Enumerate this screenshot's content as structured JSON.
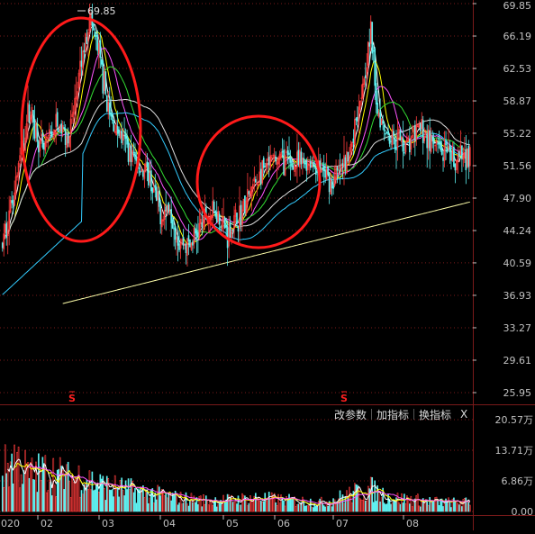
{
  "toolbar": {
    "modify_params": "改参数",
    "add_indicator": "加指标",
    "change_indicator": "换指标",
    "close": "X"
  },
  "chart_data": {
    "type": "candlestick",
    "price_axis": {
      "ticks": [
        "69.85",
        "66.19",
        "62.53",
        "58.87",
        "55.22",
        "51.56",
        "47.90",
        "44.24",
        "40.59",
        "36.93",
        "33.27",
        "29.61",
        "25.95"
      ],
      "ylim": [
        25.95,
        69.85
      ]
    },
    "high_label": "69.85",
    "volume_axis": {
      "ticks": [
        "20.57万",
        "13.71万",
        "6.86万",
        "0.00"
      ],
      "ylim": [
        0,
        20.57
      ],
      "unit": "万"
    },
    "x_ticks": [
      "2020",
      "02",
      "03",
      "04",
      "05",
      "06",
      "07",
      "08"
    ],
    "markers": [
      "S",
      "S"
    ],
    "price_keypoints": [
      {
        "t": 0,
        "p": 42.5
      },
      {
        "t": 10,
        "p": 50
      },
      {
        "t": 20,
        "p": 58
      },
      {
        "t": 30,
        "p": 53
      },
      {
        "t": 40,
        "p": 56
      },
      {
        "t": 50,
        "p": 55
      },
      {
        "t": 58,
        "p": 62
      },
      {
        "t": 65,
        "p": 68.5
      },
      {
        "t": 72,
        "p": 64
      },
      {
        "t": 80,
        "p": 57
      },
      {
        "t": 90,
        "p": 54.5
      },
      {
        "t": 100,
        "p": 52
      },
      {
        "t": 110,
        "p": 50
      },
      {
        "t": 118,
        "p": 46
      },
      {
        "t": 125,
        "p": 47
      },
      {
        "t": 132,
        "p": 43
      },
      {
        "t": 140,
        "p": 42.5
      },
      {
        "t": 150,
        "p": 45.5
      },
      {
        "t": 160,
        "p": 46.5
      },
      {
        "t": 168,
        "p": 44
      },
      {
        "t": 178,
        "p": 46
      },
      {
        "t": 188,
        "p": 49.5
      },
      {
        "t": 198,
        "p": 51.5
      },
      {
        "t": 208,
        "p": 52.5
      },
      {
        "t": 218,
        "p": 51.5
      },
      {
        "t": 228,
        "p": 52
      },
      {
        "t": 238,
        "p": 51
      },
      {
        "t": 246,
        "p": 49.5
      },
      {
        "t": 252,
        "p": 51
      },
      {
        "t": 258,
        "p": 52
      },
      {
        "t": 264,
        "p": 57
      },
      {
        "t": 270,
        "p": 62
      },
      {
        "t": 275,
        "p": 66.5
      },
      {
        "t": 280,
        "p": 58
      },
      {
        "t": 288,
        "p": 55
      },
      {
        "t": 296,
        "p": 54.5
      },
      {
        "t": 304,
        "p": 54
      },
      {
        "t": 312,
        "p": 56
      },
      {
        "t": 320,
        "p": 54
      },
      {
        "t": 328,
        "p": 53
      },
      {
        "t": 336,
        "p": 52
      },
      {
        "t": 344,
        "p": 52.5
      },
      {
        "t": 350,
        "p": 53
      }
    ],
    "volume_keypoints": [
      {
        "t": 0,
        "p": 9
      },
      {
        "t": 10,
        "p": 12
      },
      {
        "t": 20,
        "p": 8
      },
      {
        "t": 35,
        "p": 9
      },
      {
        "t": 50,
        "p": 7
      },
      {
        "t": 60,
        "p": 8
      },
      {
        "t": 70,
        "p": 6
      },
      {
        "t": 90,
        "p": 5
      },
      {
        "t": 110,
        "p": 4
      },
      {
        "t": 130,
        "p": 3
      },
      {
        "t": 150,
        "p": 2.5
      },
      {
        "t": 170,
        "p": 2.5
      },
      {
        "t": 190,
        "p": 3
      },
      {
        "t": 210,
        "p": 2.5
      },
      {
        "t": 240,
        "p": 2
      },
      {
        "t": 262,
        "p": 4
      },
      {
        "t": 275,
        "p": 5
      },
      {
        "t": 290,
        "p": 3
      },
      {
        "t": 310,
        "p": 2.5
      },
      {
        "t": 330,
        "p": 2
      },
      {
        "t": 350,
        "p": 2
      }
    ],
    "ma_series": [
      {
        "color": "#ffffff",
        "period": 5
      },
      {
        "color": "#ffff00",
        "period": 10
      },
      {
        "color": "#ff55ff",
        "period": 20
      },
      {
        "color": "#33dd33",
        "period": 30
      },
      {
        "color": "#dddddd",
        "period": 60
      },
      {
        "color": "#33ccff",
        "period": 90
      },
      {
        "color": "#ffffaa",
        "period": 250
      }
    ],
    "colors": {
      "up": "#ff3c3c",
      "down": "#5ff2f2",
      "grid": "#7a1a1a",
      "axis_text": "#c0c0c0",
      "marker": "#ff2020",
      "circle": "#ff1a1a"
    }
  }
}
